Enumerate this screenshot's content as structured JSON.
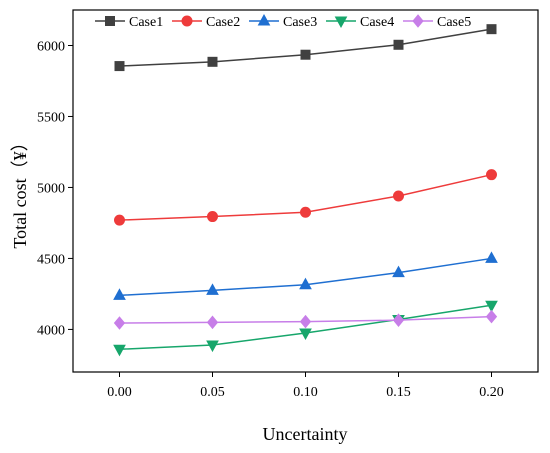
{
  "chart_data": {
    "type": "line",
    "x": [
      0.0,
      0.05,
      0.1,
      0.15,
      0.2
    ],
    "x_tick_labels": [
      "0.00",
      "0.05",
      "0.10",
      "0.15",
      "0.20"
    ],
    "xlabel": "Uncertainty",
    "ylabel": "Total cost（¥）",
    "xlim": [
      -0.025,
      0.225
    ],
    "ylim": [
      3700,
      6250
    ],
    "y_ticks": [
      4000,
      4500,
      5000,
      5500,
      6000
    ],
    "y_tick_labels": [
      "4000",
      "4500",
      "5000",
      "5500",
      "6000"
    ],
    "grid": false,
    "legend_position": "top",
    "series": [
      {
        "name": "Case1",
        "color": "#404040",
        "marker": "square",
        "values": [
          5855,
          5885,
          5935,
          6005,
          6115
        ]
      },
      {
        "name": "Case2",
        "color": "#ee3b3b",
        "marker": "circle",
        "values": [
          4770,
          4795,
          4825,
          4940,
          5090
        ]
      },
      {
        "name": "Case3",
        "color": "#1f6fd1",
        "marker": "triangle-up",
        "values": [
          4240,
          4275,
          4315,
          4400,
          4500
        ]
      },
      {
        "name": "Case4",
        "color": "#17a66b",
        "marker": "triangle-down",
        "values": [
          3860,
          3890,
          3975,
          4070,
          4170
        ]
      },
      {
        "name": "Case5",
        "color": "#c77ee8",
        "marker": "diamond",
        "values": [
          4045,
          4050,
          4055,
          4065,
          4090
        ]
      }
    ]
  }
}
